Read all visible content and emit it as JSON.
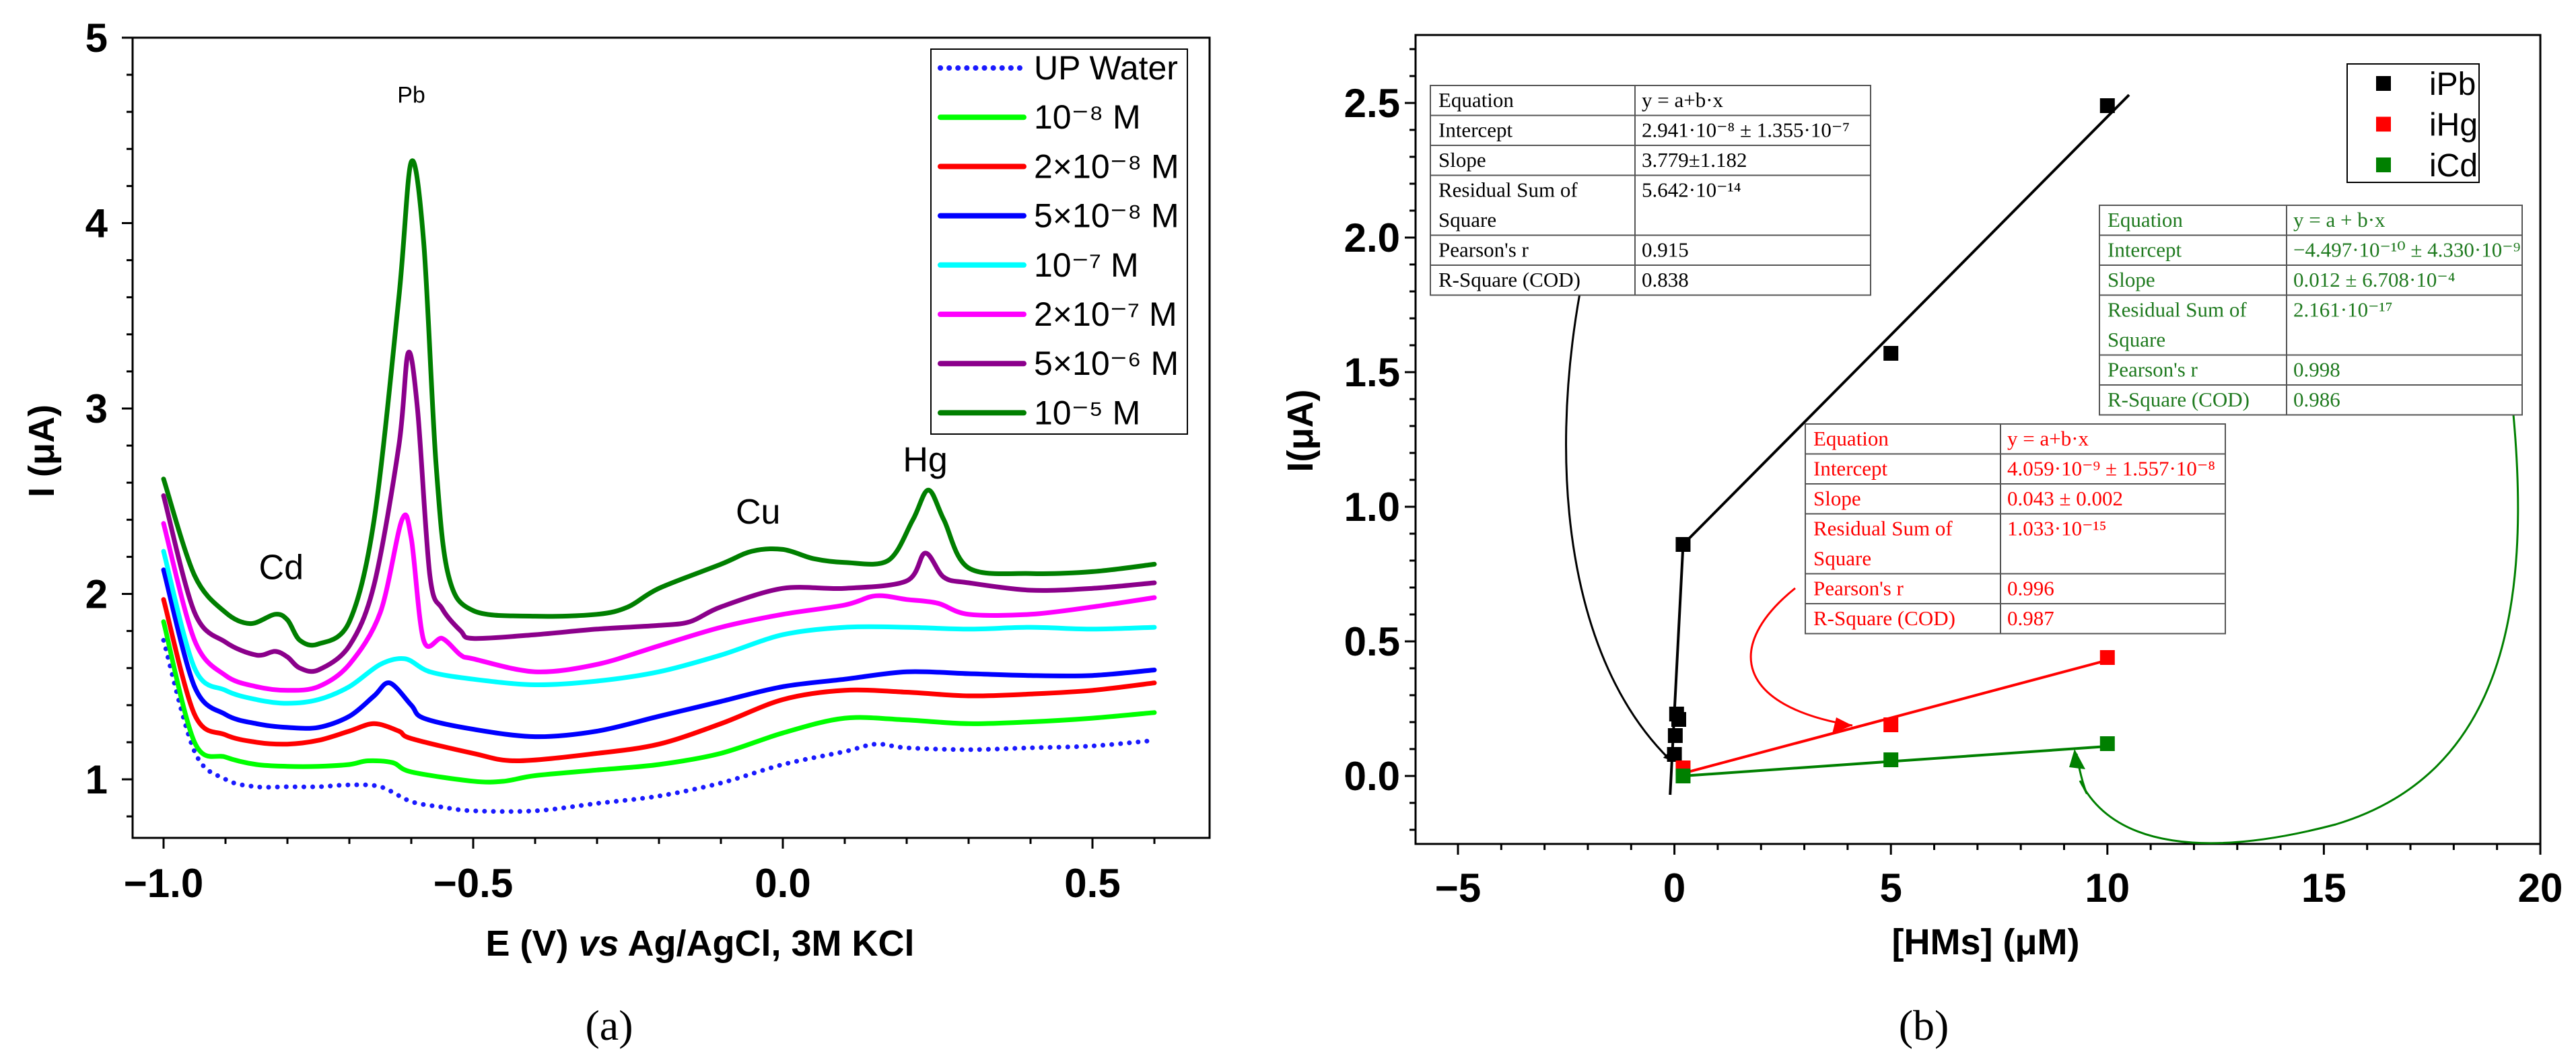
{
  "chart_data": [
    {
      "id": "a",
      "type": "line",
      "panel_label": "(a)",
      "xlabel_parts": [
        "E (V) ",
        "vs",
        " Ag/AgCl, 3M KCl"
      ],
      "ylabel": "I (μA)",
      "xlim": [
        -1.05,
        0.69
      ],
      "ylim": [
        0.68,
        5
      ],
      "xticks": [
        -1.0,
        -0.5,
        0.0,
        0.5
      ],
      "xtick_labels": [
        "−1.0",
        "−0.5",
        "0.0",
        "0.5"
      ],
      "yticks": [
        1,
        2,
        3,
        4,
        5
      ],
      "ytick_labels": [
        "1",
        "2",
        "3",
        "4",
        "5"
      ],
      "legend_position": "top-right",
      "annotations": [
        {
          "text": "Pb",
          "x": -0.6,
          "y": 4.65
        },
        {
          "text": "Cd",
          "x": -0.81,
          "y": 2.08
        },
        {
          "text": "Cu",
          "x": -0.04,
          "y": 2.38
        },
        {
          "text": "Hg",
          "x": 0.23,
          "y": 2.66
        }
      ],
      "series": [
        {
          "name": "UP Water",
          "color": "#1a1aff",
          "dotted": true,
          "x": [
            -1.0,
            -0.95,
            -0.9,
            -0.85,
            -0.8,
            -0.75,
            -0.7,
            -0.65,
            -0.6,
            -0.55,
            -0.5,
            -0.4,
            -0.3,
            -0.2,
            -0.1,
            0,
            0.1,
            0.15,
            0.2,
            0.3,
            0.4,
            0.5,
            0.6
          ],
          "y": [
            1.75,
            1.15,
            1.0,
            0.96,
            0.96,
            0.96,
            0.97,
            0.96,
            0.88,
            0.85,
            0.83,
            0.83,
            0.87,
            0.91,
            0.98,
            1.08,
            1.15,
            1.19,
            1.17,
            1.16,
            1.17,
            1.18,
            1.21
          ]
        },
        {
          "name": "10⁻⁸ M",
          "color": "#00ff00",
          "x": [
            -1.0,
            -0.95,
            -0.9,
            -0.85,
            -0.8,
            -0.75,
            -0.7,
            -0.67,
            -0.63,
            -0.6,
            -0.5,
            -0.45,
            -0.4,
            -0.3,
            -0.2,
            -0.1,
            0,
            0.1,
            0.2,
            0.3,
            0.4,
            0.5,
            0.6
          ],
          "y": [
            1.85,
            1.2,
            1.12,
            1.08,
            1.07,
            1.07,
            1.08,
            1.1,
            1.09,
            1.04,
            0.99,
            0.99,
            1.02,
            1.05,
            1.08,
            1.14,
            1.25,
            1.33,
            1.32,
            1.3,
            1.31,
            1.33,
            1.36
          ]
        },
        {
          "name": "2×10⁻⁸ M",
          "color": "#ff0000",
          "x": [
            -1.0,
            -0.95,
            -0.9,
            -0.85,
            -0.8,
            -0.75,
            -0.7,
            -0.66,
            -0.62,
            -0.6,
            -0.5,
            -0.43,
            -0.3,
            -0.2,
            -0.1,
            0,
            0.1,
            0.2,
            0.3,
            0.4,
            0.5,
            0.6
          ],
          "y": [
            1.97,
            1.35,
            1.24,
            1.2,
            1.19,
            1.21,
            1.26,
            1.3,
            1.26,
            1.22,
            1.14,
            1.1,
            1.14,
            1.19,
            1.3,
            1.43,
            1.48,
            1.47,
            1.45,
            1.46,
            1.48,
            1.52
          ]
        },
        {
          "name": "5×10⁻⁸ M",
          "color": "#0000ff",
          "x": [
            -1.0,
            -0.95,
            -0.9,
            -0.85,
            -0.8,
            -0.75,
            -0.7,
            -0.66,
            -0.635,
            -0.6,
            -0.58,
            -0.5,
            -0.4,
            -0.3,
            -0.2,
            -0.1,
            0,
            0.1,
            0.2,
            0.3,
            0.4,
            0.5,
            0.6
          ],
          "y": [
            2.13,
            1.5,
            1.35,
            1.3,
            1.28,
            1.28,
            1.34,
            1.45,
            1.52,
            1.4,
            1.33,
            1.27,
            1.23,
            1.26,
            1.34,
            1.42,
            1.5,
            1.54,
            1.58,
            1.57,
            1.56,
            1.56,
            1.59
          ]
        },
        {
          "name": "10⁻⁷ M",
          "color": "#00ffff",
          "x": [
            -1.0,
            -0.95,
            -0.9,
            -0.85,
            -0.8,
            -0.75,
            -0.7,
            -0.65,
            -0.61,
            -0.57,
            -0.5,
            -0.4,
            -0.3,
            -0.2,
            -0.1,
            0,
            0.1,
            0.2,
            0.3,
            0.4,
            0.5,
            0.6
          ],
          "y": [
            2.23,
            1.6,
            1.48,
            1.43,
            1.41,
            1.43,
            1.5,
            1.62,
            1.65,
            1.58,
            1.54,
            1.51,
            1.53,
            1.58,
            1.67,
            1.78,
            1.82,
            1.82,
            1.81,
            1.82,
            1.81,
            1.82
          ]
        },
        {
          "name": "2×10⁻⁷ M",
          "color": "#ff00ff",
          "x": [
            -1.0,
            -0.95,
            -0.9,
            -0.85,
            -0.8,
            -0.75,
            -0.7,
            -0.65,
            -0.615,
            -0.6,
            -0.58,
            -0.55,
            -0.52,
            -0.5,
            -0.4,
            -0.3,
            -0.2,
            -0.1,
            0,
            0.1,
            0.15,
            0.2,
            0.25,
            0.3,
            0.4,
            0.5,
            0.6
          ],
          "y": [
            2.38,
            1.75,
            1.56,
            1.5,
            1.48,
            1.5,
            1.62,
            1.9,
            2.4,
            2.3,
            1.75,
            1.76,
            1.67,
            1.65,
            1.58,
            1.62,
            1.72,
            1.82,
            1.89,
            1.94,
            1.99,
            1.97,
            1.95,
            1.89,
            1.89,
            1.93,
            1.98
          ]
        },
        {
          "name": "5×10⁻⁶ M",
          "color": "#8b008b",
          "x": [
            -1.0,
            -0.95,
            -0.9,
            -0.85,
            -0.82,
            -0.8,
            -0.78,
            -0.75,
            -0.7,
            -0.66,
            -0.62,
            -0.605,
            -0.59,
            -0.57,
            -0.55,
            -0.52,
            -0.5,
            -0.4,
            -0.3,
            -0.2,
            -0.15,
            -0.1,
            0,
            0.1,
            0.2,
            0.23,
            0.26,
            0.3,
            0.4,
            0.5,
            0.6
          ],
          "y": [
            2.53,
            1.9,
            1.74,
            1.67,
            1.69,
            1.66,
            1.6,
            1.59,
            1.72,
            2.05,
            2.8,
            3.3,
            3.0,
            2.1,
            1.92,
            1.8,
            1.76,
            1.78,
            1.81,
            1.83,
            1.85,
            1.93,
            2.03,
            2.03,
            2.07,
            2.22,
            2.09,
            2.06,
            2.02,
            2.03,
            2.06
          ]
        },
        {
          "name": "10⁻⁵ M",
          "color": "#007f00",
          "x": [
            -1.0,
            -0.95,
            -0.9,
            -0.86,
            -0.82,
            -0.8,
            -0.78,
            -0.75,
            -0.7,
            -0.66,
            -0.62,
            -0.6,
            -0.58,
            -0.56,
            -0.54,
            -0.5,
            -0.4,
            -0.3,
            -0.25,
            -0.2,
            -0.1,
            -0.05,
            0,
            0.05,
            0.1,
            0.17,
            0.21,
            0.235,
            0.26,
            0.3,
            0.4,
            0.5,
            0.6
          ],
          "y": [
            2.62,
            2.1,
            1.9,
            1.84,
            1.89,
            1.86,
            1.75,
            1.73,
            1.85,
            2.4,
            3.6,
            4.33,
            3.9,
            2.7,
            2.1,
            1.91,
            1.88,
            1.89,
            1.93,
            2.03,
            2.16,
            2.23,
            2.24,
            2.19,
            2.17,
            2.18,
            2.4,
            2.56,
            2.4,
            2.14,
            2.11,
            2.12,
            2.16
          ]
        }
      ]
    },
    {
      "id": "b",
      "type": "scatter",
      "panel_label": "(b)",
      "xlabel": "[HMs] (μM)",
      "ylabel": "I(μA)",
      "xlim": [
        -6,
        20
      ],
      "ylim": [
        -0.25,
        2.75
      ],
      "xticks": [
        -5,
        0,
        5,
        10,
        15,
        20
      ],
      "xtick_labels": [
        "−5",
        "0",
        "5",
        "10",
        "15",
        "20"
      ],
      "yticks": [
        0,
        0.5,
        1,
        1.5,
        2,
        2.5
      ],
      "ytick_labels": [
        "0.0",
        "0.5",
        "1.0",
        "1.5",
        "2.0",
        "2.5"
      ],
      "legend_position": "top-right",
      "series": [
        {
          "name": "iPb",
          "color": "#000000",
          "x": [
            0,
            0.02,
            0.05,
            0.1,
            0.2,
            5,
            10
          ],
          "y": [
            0.08,
            0.15,
            0.23,
            0.21,
            0.86,
            1.57,
            2.49
          ],
          "fit_x": [
            -0.1,
            0.2,
            10.5
          ],
          "fit_y": [
            -0.07,
            0.86,
            2.53
          ]
        },
        {
          "name": "iHg",
          "color": "#ff0000",
          "x": [
            0.2,
            5,
            10
          ],
          "y": [
            0.03,
            0.19,
            0.44
          ],
          "fit_x": [
            0.2,
            10
          ],
          "fit_y": [
            0.01,
            0.43
          ]
        },
        {
          "name": "iCd",
          "color": "#008000",
          "x": [
            0.2,
            5,
            10
          ],
          "y": [
            0.0,
            0.06,
            0.12
          ],
          "fit_x": [
            0.2,
            10
          ],
          "fit_y": [
            0.0,
            0.11
          ]
        }
      ],
      "fit_tables": [
        {
          "series": "iPb",
          "color": "#000000",
          "rows": [
            {
              "label": [
                "Equation"
              ],
              "value": "y = a+b·x"
            },
            {
              "label": [
                "Intercept"
              ],
              "value": "2.941·10⁻⁸ ± 1.355·10⁻⁷"
            },
            {
              "label": [
                "Slope"
              ],
              "value": "3.779±1.182"
            },
            {
              "label": [
                "Residual Sum of",
                "Square"
              ],
              "value": "5.642·10⁻¹⁴"
            },
            {
              "label": [
                "Pearson's r"
              ],
              "value": "0.915"
            },
            {
              "label": [
                "R-Square (COD)"
              ],
              "value": "0.838"
            }
          ]
        },
        {
          "series": "iCd",
          "color": "#1f7a1f",
          "rows": [
            {
              "label": [
                "Equation"
              ],
              "value": "y = a + b·x"
            },
            {
              "label": [
                "Intercept"
              ],
              "value": "−4.497·10⁻¹⁰ ± 4.330·10⁻⁹"
            },
            {
              "label": [
                "Slope"
              ],
              "value": "0.012 ± 6.708·10⁻⁴"
            },
            {
              "label": [
                "Residual Sum of",
                "Square"
              ],
              "value": "2.161·10⁻¹⁷"
            },
            {
              "label": [
                "Pearson's r"
              ],
              "value": "0.998"
            },
            {
              "label": [
                "R-Square (COD)"
              ],
              "value": "0.986"
            }
          ]
        },
        {
          "series": "iHg",
          "color": "#ff0000",
          "rows": [
            {
              "label": [
                "Equation"
              ],
              "value": "y = a+b·x"
            },
            {
              "label": [
                "Intercept"
              ],
              "value": "4.059·10⁻⁹ ± 1.557·10⁻⁸"
            },
            {
              "label": [
                "Slope"
              ],
              "value": "0.043 ± 0.002"
            },
            {
              "label": [
                "Residual Sum of",
                "Square"
              ],
              "value": "1.033·10⁻¹⁵"
            },
            {
              "label": [
                "Pearson's r"
              ],
              "value": "0.996"
            },
            {
              "label": [
                "R-Square (COD)"
              ],
              "value": "0.987"
            }
          ]
        }
      ]
    }
  ]
}
